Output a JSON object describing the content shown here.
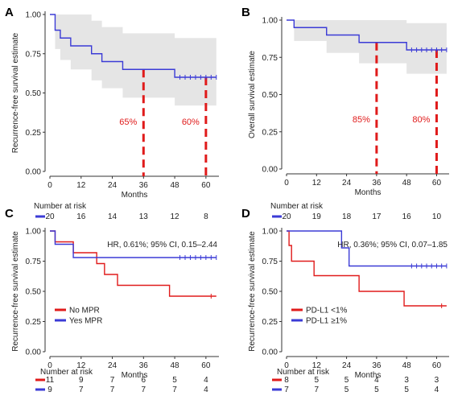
{
  "chart_data": [
    {
      "panel": "A",
      "type": "line",
      "subtype": "kaplan-meier",
      "ylabel": "Recurrence-free survival estimate",
      "xlabel": "Months",
      "xlim": [
        0,
        65
      ],
      "ylim": [
        0,
        1.0
      ],
      "x_ticks": [
        0,
        12,
        24,
        36,
        48,
        60
      ],
      "y_ticks": [
        "0.00",
        "0.25",
        "0.50",
        "0.75",
        "1.00"
      ],
      "confidence_band": true,
      "series": [
        {
          "color": "#3b3bd6",
          "steps": [
            [
              0,
              1.0
            ],
            [
              2,
              1.0
            ],
            [
              2,
              0.9
            ],
            [
              4,
              0.9
            ],
            [
              4,
              0.85
            ],
            [
              8,
              0.85
            ],
            [
              8,
              0.8
            ],
            [
              16,
              0.8
            ],
            [
              16,
              0.75
            ],
            [
              20,
              0.75
            ],
            [
              20,
              0.7
            ],
            [
              28,
              0.7
            ],
            [
              28,
              0.65
            ],
            [
              48,
              0.65
            ],
            [
              48,
              0.6
            ],
            [
              64,
              0.6
            ]
          ],
          "censor": [
            50,
            52,
            54,
            56,
            58,
            60,
            62,
            64
          ],
          "band_upper": [
            [
              0,
              1.0
            ],
            [
              2,
              1.0
            ],
            [
              4,
              1.0
            ],
            [
              8,
              1.0
            ],
            [
              16,
              0.96
            ],
            [
              20,
              0.92
            ],
            [
              28,
              0.88
            ],
            [
              48,
              0.85
            ],
            [
              64,
              0.85
            ]
          ],
          "band_lower": [
            [
              0,
              1.0
            ],
            [
              2,
              0.78
            ],
            [
              4,
              0.71
            ],
            [
              8,
              0.65
            ],
            [
              16,
              0.58
            ],
            [
              20,
              0.53
            ],
            [
              28,
              0.47
            ],
            [
              48,
              0.42
            ],
            [
              64,
              0.42
            ]
          ]
        }
      ],
      "annotations": [
        {
          "x": 36,
          "y": 0.65,
          "label": "65%"
        },
        {
          "x": 60,
          "y": 0.6,
          "label": "60%"
        }
      ]
    },
    {
      "panel": "B",
      "type": "line",
      "subtype": "kaplan-meier",
      "ylabel": "Overall survival estimate",
      "xlabel": "Months",
      "xlim": [
        0,
        65
      ],
      "ylim": [
        0,
        1.0
      ],
      "x_ticks": [
        0,
        12,
        24,
        36,
        48,
        60
      ],
      "y_ticks": [
        "0.00",
        "0.25",
        "0.50",
        "0.75",
        "1.00"
      ],
      "confidence_band": true,
      "series": [
        {
          "color": "#3b3bd6",
          "steps": [
            [
              0,
              1.0
            ],
            [
              3,
              1.0
            ],
            [
              3,
              0.95
            ],
            [
              16,
              0.95
            ],
            [
              16,
              0.9
            ],
            [
              29,
              0.9
            ],
            [
              29,
              0.85
            ],
            [
              48,
              0.85
            ],
            [
              48,
              0.8
            ],
            [
              64,
              0.8
            ]
          ],
          "censor": [
            50,
            52,
            54,
            56,
            58,
            60,
            62,
            64
          ],
          "band_upper": [
            [
              0,
              1.0
            ],
            [
              3,
              1.0
            ],
            [
              16,
              1.0
            ],
            [
              29,
              1.0
            ],
            [
              48,
              0.98
            ],
            [
              64,
              0.98
            ]
          ],
          "band_lower": [
            [
              0,
              1.0
            ],
            [
              3,
              0.86
            ],
            [
              16,
              0.78
            ],
            [
              29,
              0.71
            ],
            [
              48,
              0.64
            ],
            [
              64,
              0.64
            ]
          ]
        }
      ],
      "annotations": [
        {
          "x": 36,
          "y": 0.85,
          "label": "85%"
        },
        {
          "x": 60,
          "y": 0.8,
          "label": "80%"
        }
      ]
    },
    {
      "panel": "C",
      "type": "line",
      "subtype": "kaplan-meier",
      "ylabel": "Recurrence-free survival estimate",
      "xlabel": "Months",
      "xlim": [
        0,
        65
      ],
      "ylim": [
        0,
        1.0
      ],
      "x_ticks": [
        0,
        12,
        24,
        36,
        48,
        60
      ],
      "y_ticks": [
        "0.00",
        "0.25",
        "0.50",
        "0.75",
        "1.00"
      ],
      "stat_text": "HR, 0.61%; 95% CI, 0.15–2.44",
      "legend_position": "bottom-left",
      "series": [
        {
          "name": "No MPR",
          "color": "#e01b1b",
          "steps": [
            [
              0,
              1.0
            ],
            [
              2,
              1.0
            ],
            [
              2,
              0.91
            ],
            [
              9,
              0.91
            ],
            [
              9,
              0.82
            ],
            [
              18,
              0.82
            ],
            [
              18,
              0.73
            ],
            [
              21,
              0.73
            ],
            [
              21,
              0.64
            ],
            [
              26,
              0.64
            ],
            [
              26,
              0.55
            ],
            [
              46,
              0.55
            ],
            [
              46,
              0.46
            ],
            [
              64,
              0.46
            ]
          ],
          "censor": [
            62
          ]
        },
        {
          "name": "Yes MPR",
          "color": "#3b3bd6",
          "steps": [
            [
              0,
              1.0
            ],
            [
              2,
              1.0
            ],
            [
              2,
              0.89
            ],
            [
              9,
              0.89
            ],
            [
              9,
              0.78
            ],
            [
              64,
              0.78
            ]
          ],
          "censor": [
            50,
            52,
            54,
            56,
            58,
            60,
            62,
            64
          ]
        }
      ],
      "risk_table": {
        "title": "Number at risk",
        "rows": [
          {
            "color": "#e01b1b",
            "values": [
              "11",
              "9",
              "7",
              "6",
              "5",
              "4"
            ]
          },
          {
            "color": "#3b3bd6",
            "values": [
              "9",
              "7",
              "7",
              "7",
              "7",
              "4"
            ]
          }
        ]
      }
    },
    {
      "panel": "D",
      "type": "line",
      "subtype": "kaplan-meier",
      "ylabel": "Recurrence-free survival estimate",
      "xlabel": "Months",
      "xlim": [
        0,
        65
      ],
      "ylim": [
        0,
        1.0
      ],
      "x_ticks": [
        0,
        12,
        24,
        36,
        48,
        60
      ],
      "y_ticks": [
        "0.00",
        "0.25",
        "0.50",
        "0.75",
        "1.00"
      ],
      "stat_text": "HR, 0.36%; 95% CI, 0.07–1.85",
      "legend_position": "bottom-left",
      "series": [
        {
          "name": "PD-L1 <1%",
          "color": "#e01b1b",
          "steps": [
            [
              0,
              1.0
            ],
            [
              1,
              1.0
            ],
            [
              1,
              0.88
            ],
            [
              2,
              0.88
            ],
            [
              2,
              0.75
            ],
            [
              11,
              0.75
            ],
            [
              11,
              0.63
            ],
            [
              29,
              0.63
            ],
            [
              29,
              0.5
            ],
            [
              47,
              0.5
            ],
            [
              47,
              0.38
            ],
            [
              64,
              0.38
            ]
          ],
          "censor": [
            62
          ]
        },
        {
          "name": "PD-L1 ≥1%",
          "color": "#3b3bd6",
          "steps": [
            [
              0,
              1.0
            ],
            [
              22,
              1.0
            ],
            [
              22,
              0.86
            ],
            [
              25,
              0.86
            ],
            [
              25,
              0.71
            ],
            [
              64,
              0.71
            ]
          ],
          "censor": [
            50,
            52,
            54,
            56,
            58,
            60,
            62,
            64
          ]
        }
      ],
      "risk_table_top": {
        "title": "Number at risk",
        "rows": [
          {
            "color": "#3b3bd6",
            "values": [
              "20",
              "19",
              "18",
              "17",
              "16",
              "10"
            ]
          }
        ]
      },
      "risk_table": {
        "title": "Number at risk",
        "rows": [
          {
            "color": "#e01b1b",
            "values": [
              "8",
              "5",
              "5",
              "4",
              "3",
              "3"
            ]
          },
          {
            "color": "#3b3bd6",
            "values": [
              "7",
              "7",
              "5",
              "5",
              "5",
              "4"
            ]
          }
        ]
      }
    }
  ],
  "panel_c_top_risk": {
    "title": "Number at risk",
    "color": "#3b3bd6",
    "values": [
      "20",
      "16",
      "14",
      "13",
      "12",
      "8"
    ]
  },
  "colors": {
    "band": "#e5e5e5",
    "axis": "#333333",
    "annotation": "#e01b1b"
  }
}
